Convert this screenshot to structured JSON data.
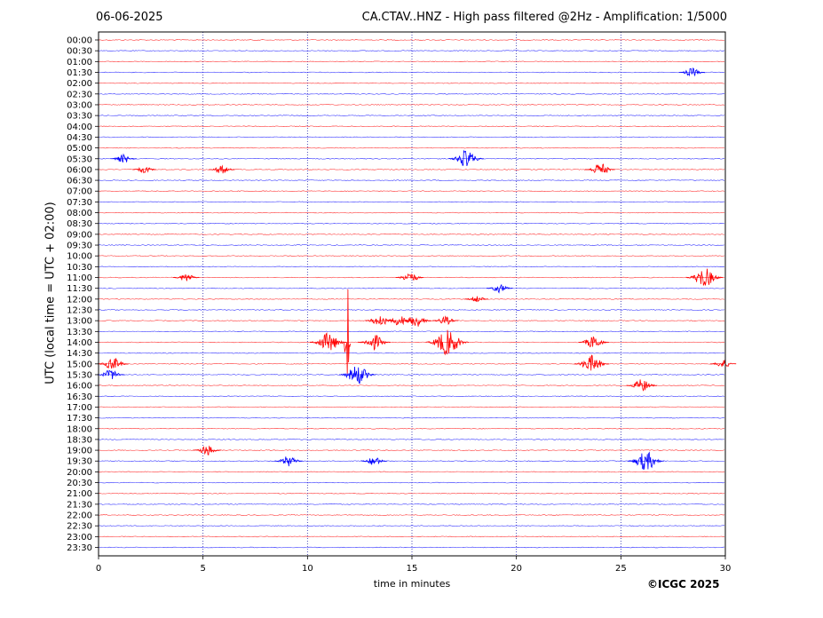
{
  "header": {
    "date": "06-06-2025",
    "title": "CA.CTAV..HNZ - High pass filtered @2Hz - Amplification: 1/5000"
  },
  "footer": {
    "copyright": "©ICGC 2025"
  },
  "chart_data": {
    "type": "line",
    "title": "CA.CTAV..HNZ - High pass filtered @2Hz - Amplification: 1/5000",
    "xlabel": "time in minutes",
    "ylabel": "UTC (local time = UTC + 02:00)",
    "xlim": [
      0,
      30
    ],
    "x_ticks": [
      0,
      5,
      10,
      15,
      20,
      25,
      30
    ],
    "vertical_grid": [
      5,
      10,
      15,
      20,
      25
    ],
    "grid": "vertical dotted",
    "trace_colors": [
      "#ff0000",
      "#0000ff"
    ],
    "rows": [
      "00:00",
      "00:30",
      "01:00",
      "01:30",
      "02:00",
      "02:30",
      "03:00",
      "03:30",
      "04:00",
      "04:30",
      "05:00",
      "05:30",
      "06:00",
      "06:30",
      "07:00",
      "07:30",
      "08:00",
      "08:30",
      "09:00",
      "09:30",
      "10:00",
      "10:30",
      "11:00",
      "11:30",
      "12:00",
      "12:30",
      "13:00",
      "13:30",
      "14:00",
      "14:30",
      "15:00",
      "15:30",
      "16:00",
      "16:30",
      "17:00",
      "17:30",
      "18:00",
      "18:30",
      "19:00",
      "19:30",
      "20:00",
      "20:30",
      "21:00",
      "21:30",
      "22:00",
      "22:30",
      "23:00",
      "23:30"
    ],
    "events": [
      {
        "row": "01:30",
        "minute": 28.4,
        "amp": 0.4
      },
      {
        "row": "05:30",
        "minute": 1.2,
        "amp": 0.4
      },
      {
        "row": "05:30",
        "minute": 17.6,
        "amp": 0.8
      },
      {
        "row": "06:00",
        "minute": 2.2,
        "amp": 0.3
      },
      {
        "row": "06:00",
        "minute": 5.9,
        "amp": 0.4
      },
      {
        "row": "06:00",
        "minute": 24.0,
        "amp": 0.6
      },
      {
        "row": "11:00",
        "minute": 4.2,
        "amp": 0.4
      },
      {
        "row": "11:00",
        "minute": 14.9,
        "amp": 0.5
      },
      {
        "row": "11:00",
        "minute": 29.0,
        "amp": 0.9
      },
      {
        "row": "11:30",
        "minute": 19.2,
        "amp": 0.4
      },
      {
        "row": "12:00",
        "minute": 18.1,
        "amp": 0.3
      },
      {
        "row": "13:00",
        "minute": 13.5,
        "amp": 0.6
      },
      {
        "row": "13:00",
        "minute": 14.4,
        "amp": 0.5
      },
      {
        "row": "13:00",
        "minute": 15.2,
        "amp": 0.6
      },
      {
        "row": "13:00",
        "minute": 16.6,
        "amp": 0.4
      },
      {
        "row": "14:00",
        "minute": 11.0,
        "amp": 0.9
      },
      {
        "row": "14:00",
        "minute": 11.9,
        "amp": 6.0
      },
      {
        "row": "14:00",
        "minute": 13.2,
        "amp": 0.7
      },
      {
        "row": "14:00",
        "minute": 16.7,
        "amp": 1.2
      },
      {
        "row": "14:00",
        "minute": 23.7,
        "amp": 0.6
      },
      {
        "row": "15:00",
        "minute": 0.7,
        "amp": 0.6
      },
      {
        "row": "15:00",
        "minute": 23.6,
        "amp": 0.8
      },
      {
        "row": "15:00",
        "minute": 29.9,
        "amp": 0.4
      },
      {
        "row": "15:30",
        "minute": 0.6,
        "amp": 0.5
      },
      {
        "row": "15:30",
        "minute": 12.4,
        "amp": 0.9
      },
      {
        "row": "16:00",
        "minute": 26.0,
        "amp": 0.6
      },
      {
        "row": "19:00",
        "minute": 5.2,
        "amp": 0.5
      },
      {
        "row": "19:30",
        "minute": 9.1,
        "amp": 0.5
      },
      {
        "row": "19:30",
        "minute": 13.2,
        "amp": 0.4
      },
      {
        "row": "19:30",
        "minute": 26.2,
        "amp": 0.9
      }
    ]
  }
}
